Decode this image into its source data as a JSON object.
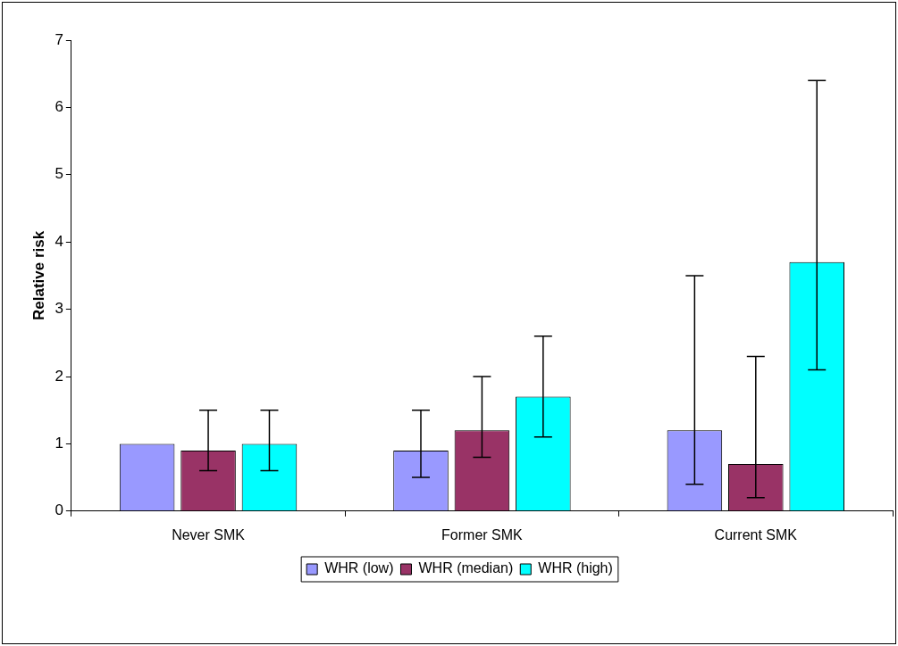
{
  "chart_data": {
    "type": "bar",
    "ylabel": "Relative risk",
    "categories": [
      "Never SMK",
      "Former SMK",
      "Current SMK"
    ],
    "series": [
      {
        "name": "WHR (low)",
        "color": "#9999ff",
        "values": [
          1.0,
          0.9,
          1.2
        ],
        "errors": [
          null,
          [
            0.5,
            1.5
          ],
          [
            0.4,
            3.5
          ]
        ]
      },
      {
        "name": "WHR (median)",
        "color": "#993366",
        "values": [
          0.9,
          1.2,
          0.7
        ],
        "errors": [
          [
            0.6,
            1.5
          ],
          [
            0.8,
            2.0
          ],
          [
            0.2,
            2.3
          ]
        ]
      },
      {
        "name": "WHR (high)",
        "color": "#00ffff",
        "values": [
          1.0,
          1.7,
          3.7
        ],
        "errors": [
          [
            0.6,
            1.5
          ],
          [
            1.1,
            2.6
          ],
          [
            2.1,
            6.4
          ]
        ]
      }
    ],
    "ylim": [
      0,
      7
    ],
    "yticks": [
      0,
      1,
      2,
      3,
      4,
      5,
      6,
      7
    ],
    "grid": false,
    "legend": "bottom"
  }
}
